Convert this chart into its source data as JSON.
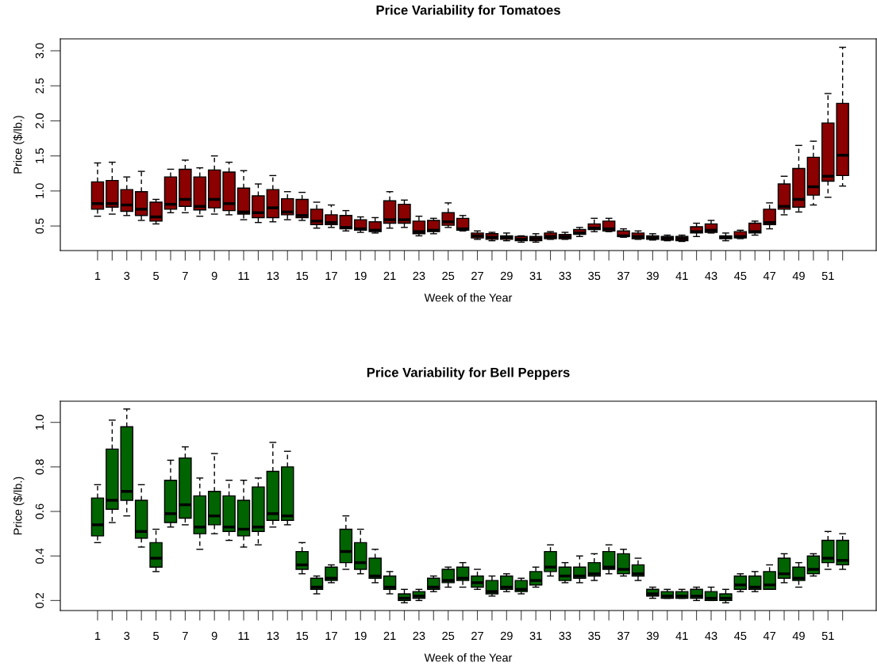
{
  "chart_data": [
    {
      "type": "box",
      "title": "Price Variability for Tomatoes",
      "xlabel": "Week of the Year",
      "ylabel": "Price ($/lb.)",
      "color": "#8b0000",
      "categories": [
        "1",
        null,
        "3",
        null,
        "5",
        null,
        "7",
        null,
        "9",
        null,
        "11",
        null,
        "13",
        null,
        "15",
        null,
        "17",
        null,
        "19",
        null,
        "21",
        null,
        "23",
        null,
        "25",
        null,
        "27",
        null,
        "29",
        null,
        "31",
        null,
        "33",
        null,
        "35",
        null,
        "37",
        null,
        "39",
        null,
        "41",
        null,
        "43",
        null,
        "45",
        null,
        "47",
        null,
        "49",
        null,
        "51",
        null
      ],
      "ylim": [
        0.15,
        3.17
      ],
      "yticks": [
        {
          "value": 0.5,
          "label": "0.5"
        },
        {
          "value": 1.0,
          "label": "1.0"
        },
        {
          "value": 1.5,
          "label": "1.5"
        },
        {
          "value": 2.0,
          "label": "2.0"
        },
        {
          "value": 2.5,
          "label": "2.5"
        },
        {
          "value": 3.0,
          "label": "3.0"
        }
      ],
      "boxes": [
        {
          "low": 0.64,
          "q1": 0.74,
          "median": 0.82,
          "q3": 1.13,
          "high": 1.4
        },
        {
          "low": 0.67,
          "q1": 0.77,
          "median": 0.82,
          "q3": 1.15,
          "high": 1.41
        },
        {
          "low": 0.65,
          "q1": 0.71,
          "median": 0.8,
          "q3": 1.02,
          "high": 1.2
        },
        {
          "low": 0.58,
          "q1": 0.65,
          "median": 0.74,
          "q3": 0.99,
          "high": 1.28
        },
        {
          "low": 0.53,
          "q1": 0.57,
          "median": 0.63,
          "q3": 0.84,
          "high": 0.88
        },
        {
          "low": 0.69,
          "q1": 0.74,
          "median": 0.81,
          "q3": 1.2,
          "high": 1.31
        },
        {
          "low": 0.69,
          "q1": 0.78,
          "median": 0.88,
          "q3": 1.31,
          "high": 1.44
        },
        {
          "low": 0.64,
          "q1": 0.73,
          "median": 0.78,
          "q3": 1.2,
          "high": 1.33
        },
        {
          "low": 0.67,
          "q1": 0.76,
          "median": 0.88,
          "q3": 1.3,
          "high": 1.5
        },
        {
          "low": 0.66,
          "q1": 0.72,
          "median": 0.82,
          "q3": 1.27,
          "high": 1.41
        },
        {
          "low": 0.59,
          "q1": 0.67,
          "median": 0.7,
          "q3": 1.04,
          "high": 1.29
        },
        {
          "low": 0.55,
          "q1": 0.62,
          "median": 0.69,
          "q3": 0.93,
          "high": 1.1
        },
        {
          "low": 0.56,
          "q1": 0.62,
          "median": 0.76,
          "q3": 1.02,
          "high": 1.22
        },
        {
          "low": 0.59,
          "q1": 0.66,
          "median": 0.7,
          "q3": 0.89,
          "high": 0.99
        },
        {
          "low": 0.58,
          "q1": 0.62,
          "median": 0.65,
          "q3": 0.88,
          "high": 0.98
        },
        {
          "low": 0.47,
          "q1": 0.52,
          "median": 0.57,
          "q3": 0.74,
          "high": 0.84
        },
        {
          "low": 0.48,
          "q1": 0.52,
          "median": 0.55,
          "q3": 0.66,
          "high": 0.8
        },
        {
          "low": 0.43,
          "q1": 0.46,
          "median": 0.48,
          "q3": 0.65,
          "high": 0.72
        },
        {
          "low": 0.41,
          "q1": 0.44,
          "median": 0.46,
          "q3": 0.59,
          "high": 0.63
        },
        {
          "low": 0.4,
          "q1": 0.42,
          "median": 0.44,
          "q3": 0.56,
          "high": 0.62
        },
        {
          "low": 0.47,
          "q1": 0.54,
          "median": 0.59,
          "q3": 0.86,
          "high": 0.99
        },
        {
          "low": 0.48,
          "q1": 0.54,
          "median": 0.59,
          "q3": 0.81,
          "high": 0.87
        },
        {
          "low": 0.36,
          "q1": 0.39,
          "median": 0.42,
          "q3": 0.57,
          "high": 0.64
        },
        {
          "low": 0.39,
          "q1": 0.42,
          "median": 0.44,
          "q3": 0.58,
          "high": 0.61
        },
        {
          "low": 0.48,
          "q1": 0.51,
          "median": 0.56,
          "q3": 0.69,
          "high": 0.83
        },
        {
          "low": 0.43,
          "q1": 0.44,
          "median": 0.46,
          "q3": 0.61,
          "high": 0.65
        },
        {
          "low": 0.31,
          "q1": 0.33,
          "median": 0.36,
          "q3": 0.4,
          "high": 0.43
        },
        {
          "low": 0.29,
          "q1": 0.31,
          "median": 0.34,
          "q3": 0.39,
          "high": 0.41
        },
        {
          "low": 0.29,
          "q1": 0.31,
          "median": 0.34,
          "q3": 0.36,
          "high": 0.4
        },
        {
          "low": 0.27,
          "q1": 0.29,
          "median": 0.31,
          "q3": 0.35,
          "high": 0.36
        },
        {
          "low": 0.27,
          "q1": 0.29,
          "median": 0.32,
          "q3": 0.35,
          "high": 0.39
        },
        {
          "low": 0.31,
          "q1": 0.32,
          "median": 0.35,
          "q3": 0.4,
          "high": 0.42
        },
        {
          "low": 0.31,
          "q1": 0.32,
          "median": 0.35,
          "q3": 0.38,
          "high": 0.41
        },
        {
          "low": 0.35,
          "q1": 0.38,
          "median": 0.4,
          "q3": 0.45,
          "high": 0.48
        },
        {
          "low": 0.42,
          "q1": 0.45,
          "median": 0.47,
          "q3": 0.53,
          "high": 0.61
        },
        {
          "low": 0.42,
          "q1": 0.43,
          "median": 0.46,
          "q3": 0.57,
          "high": 0.61
        },
        {
          "low": 0.34,
          "q1": 0.35,
          "median": 0.36,
          "q3": 0.43,
          "high": 0.46
        },
        {
          "low": 0.31,
          "q1": 0.32,
          "median": 0.35,
          "q3": 0.4,
          "high": 0.43
        },
        {
          "low": 0.3,
          "q1": 0.31,
          "median": 0.33,
          "q3": 0.36,
          "high": 0.39
        },
        {
          "low": 0.29,
          "q1": 0.3,
          "median": 0.33,
          "q3": 0.35,
          "high": 0.37
        },
        {
          "low": 0.28,
          "q1": 0.29,
          "median": 0.32,
          "q3": 0.35,
          "high": 0.37
        },
        {
          "low": 0.35,
          "q1": 0.4,
          "median": 0.42,
          "q3": 0.49,
          "high": 0.54
        },
        {
          "low": 0.4,
          "q1": 0.41,
          "median": 0.44,
          "q3": 0.53,
          "high": 0.58
        },
        {
          "low": 0.29,
          "q1": 0.32,
          "median": 0.34,
          "q3": 0.36,
          "high": 0.4
        },
        {
          "low": 0.32,
          "q1": 0.33,
          "median": 0.35,
          "q3": 0.42,
          "high": 0.44
        },
        {
          "low": 0.37,
          "q1": 0.4,
          "median": 0.42,
          "q3": 0.54,
          "high": 0.57
        },
        {
          "low": 0.46,
          "q1": 0.52,
          "median": 0.55,
          "q3": 0.74,
          "high": 0.83
        },
        {
          "low": 0.66,
          "q1": 0.74,
          "median": 0.78,
          "q3": 1.1,
          "high": 1.21
        },
        {
          "low": 0.7,
          "q1": 0.77,
          "median": 0.88,
          "q3": 1.32,
          "high": 1.65
        },
        {
          "low": 0.8,
          "q1": 0.94,
          "median": 1.06,
          "q3": 1.48,
          "high": 1.71
        },
        {
          "low": 0.91,
          "q1": 1.14,
          "median": 1.21,
          "q3": 1.97,
          "high": 2.39
        },
        {
          "low": 1.07,
          "q1": 1.22,
          "median": 1.51,
          "q3": 2.25,
          "high": 3.05
        }
      ]
    },
    {
      "type": "box",
      "title": "Price Variability for Bell Peppers",
      "xlabel": "Week of the Year",
      "ylabel": "Price ($/lb.)",
      "color": "#006400",
      "categories": [
        "1",
        null,
        "3",
        null,
        "5",
        null,
        "7",
        null,
        "9",
        null,
        "11",
        null,
        "13",
        null,
        "15",
        null,
        "17",
        null,
        "19",
        null,
        "21",
        null,
        "23",
        null,
        "25",
        null,
        "27",
        null,
        "29",
        null,
        "31",
        null,
        "33",
        null,
        "35",
        null,
        "37",
        null,
        "39",
        null,
        "41",
        null,
        "43",
        null,
        "45",
        null,
        "47",
        null,
        "49",
        null,
        "51",
        null
      ],
      "ylim": [
        0.155,
        1.095
      ],
      "yticks": [
        {
          "value": 0.2,
          "label": "0.2"
        },
        {
          "value": 0.4,
          "label": "0.4"
        },
        {
          "value": 0.6,
          "label": "0.6"
        },
        {
          "value": 0.8,
          "label": "0.8"
        },
        {
          "value": 1.0,
          "label": "1.0"
        }
      ],
      "boxes": [
        {
          "low": 0.46,
          "q1": 0.49,
          "median": 0.54,
          "q3": 0.66,
          "high": 0.72
        },
        {
          "low": 0.55,
          "q1": 0.61,
          "median": 0.65,
          "q3": 0.88,
          "high": 1.01
        },
        {
          "low": 0.58,
          "q1": 0.65,
          "median": 0.69,
          "q3": 0.98,
          "high": 1.06
        },
        {
          "low": 0.44,
          "q1": 0.48,
          "median": 0.51,
          "q3": 0.65,
          "high": 0.72
        },
        {
          "low": 0.33,
          "q1": 0.35,
          "median": 0.39,
          "q3": 0.46,
          "high": 0.52
        },
        {
          "low": 0.53,
          "q1": 0.55,
          "median": 0.59,
          "q3": 0.74,
          "high": 0.83
        },
        {
          "low": 0.54,
          "q1": 0.57,
          "median": 0.63,
          "q3": 0.84,
          "high": 0.89
        },
        {
          "low": 0.43,
          "q1": 0.5,
          "median": 0.53,
          "q3": 0.67,
          "high": 0.75
        },
        {
          "low": 0.5,
          "q1": 0.54,
          "median": 0.58,
          "q3": 0.69,
          "high": 0.86
        },
        {
          "low": 0.47,
          "q1": 0.51,
          "median": 0.53,
          "q3": 0.67,
          "high": 0.74
        },
        {
          "low": 0.44,
          "q1": 0.49,
          "median": 0.52,
          "q3": 0.65,
          "high": 0.74
        },
        {
          "low": 0.45,
          "q1": 0.51,
          "median": 0.53,
          "q3": 0.71,
          "high": 0.75
        },
        {
          "low": 0.53,
          "q1": 0.56,
          "median": 0.59,
          "q3": 0.78,
          "high": 0.91
        },
        {
          "low": 0.54,
          "q1": 0.56,
          "median": 0.58,
          "q3": 0.8,
          "high": 0.87
        },
        {
          "low": 0.32,
          "q1": 0.34,
          "median": 0.36,
          "q3": 0.42,
          "high": 0.46
        },
        {
          "low": 0.23,
          "q1": 0.25,
          "median": 0.26,
          "q3": 0.3,
          "high": 0.31
        },
        {
          "low": 0.28,
          "q1": 0.29,
          "median": 0.3,
          "q3": 0.35,
          "high": 0.36
        },
        {
          "low": 0.34,
          "q1": 0.37,
          "median": 0.42,
          "q3": 0.52,
          "high": 0.58
        },
        {
          "low": 0.32,
          "q1": 0.34,
          "median": 0.37,
          "q3": 0.46,
          "high": 0.52
        },
        {
          "low": 0.28,
          "q1": 0.3,
          "median": 0.31,
          "q3": 0.39,
          "high": 0.43
        },
        {
          "low": 0.23,
          "q1": 0.25,
          "median": 0.26,
          "q3": 0.31,
          "high": 0.33
        },
        {
          "low": 0.19,
          "q1": 0.2,
          "median": 0.21,
          "q3": 0.23,
          "high": 0.25
        },
        {
          "low": 0.2,
          "q1": 0.21,
          "median": 0.22,
          "q3": 0.24,
          "high": 0.25
        },
        {
          "low": 0.24,
          "q1": 0.25,
          "median": 0.26,
          "q3": 0.3,
          "high": 0.31
        },
        {
          "low": 0.26,
          "q1": 0.28,
          "median": 0.29,
          "q3": 0.34,
          "high": 0.35
        },
        {
          "low": 0.26,
          "q1": 0.29,
          "median": 0.3,
          "q3": 0.35,
          "high": 0.37
        },
        {
          "low": 0.25,
          "q1": 0.26,
          "median": 0.28,
          "q3": 0.31,
          "high": 0.34
        },
        {
          "low": 0.22,
          "q1": 0.23,
          "median": 0.24,
          "q3": 0.29,
          "high": 0.31
        },
        {
          "low": 0.24,
          "q1": 0.25,
          "median": 0.26,
          "q3": 0.31,
          "high": 0.32
        },
        {
          "low": 0.23,
          "q1": 0.24,
          "median": 0.25,
          "q3": 0.29,
          "high": 0.3
        },
        {
          "low": 0.26,
          "q1": 0.27,
          "median": 0.29,
          "q3": 0.33,
          "high": 0.35
        },
        {
          "low": 0.31,
          "q1": 0.33,
          "median": 0.35,
          "q3": 0.42,
          "high": 0.45
        },
        {
          "low": 0.28,
          "q1": 0.29,
          "median": 0.31,
          "q3": 0.35,
          "high": 0.37
        },
        {
          "low": 0.28,
          "q1": 0.3,
          "median": 0.31,
          "q3": 0.35,
          "high": 0.4
        },
        {
          "low": 0.29,
          "q1": 0.31,
          "median": 0.32,
          "q3": 0.37,
          "high": 0.41
        },
        {
          "low": 0.32,
          "q1": 0.34,
          "median": 0.35,
          "q3": 0.42,
          "high": 0.45
        },
        {
          "low": 0.31,
          "q1": 0.32,
          "median": 0.34,
          "q3": 0.41,
          "high": 0.43
        },
        {
          "low": 0.29,
          "q1": 0.31,
          "median": 0.32,
          "q3": 0.36,
          "high": 0.39
        },
        {
          "low": 0.21,
          "q1": 0.22,
          "median": 0.23,
          "q3": 0.25,
          "high": 0.26
        },
        {
          "low": 0.21,
          "q1": 0.21,
          "median": 0.22,
          "q3": 0.24,
          "high": 0.25
        },
        {
          "low": 0.21,
          "q1": 0.21,
          "median": 0.22,
          "q3": 0.24,
          "high": 0.25
        },
        {
          "low": 0.2,
          "q1": 0.21,
          "median": 0.22,
          "q3": 0.25,
          "high": 0.26
        },
        {
          "low": 0.2,
          "q1": 0.2,
          "median": 0.21,
          "q3": 0.24,
          "high": 0.26
        },
        {
          "low": 0.19,
          "q1": 0.2,
          "median": 0.21,
          "q3": 0.23,
          "high": 0.25
        },
        {
          "low": 0.24,
          "q1": 0.25,
          "median": 0.27,
          "q3": 0.31,
          "high": 0.32
        },
        {
          "low": 0.24,
          "q1": 0.25,
          "median": 0.26,
          "q3": 0.31,
          "high": 0.33
        },
        {
          "low": 0.25,
          "q1": 0.25,
          "median": 0.27,
          "q3": 0.33,
          "high": 0.36
        },
        {
          "low": 0.28,
          "q1": 0.3,
          "median": 0.32,
          "q3": 0.39,
          "high": 0.41
        },
        {
          "low": 0.26,
          "q1": 0.29,
          "median": 0.3,
          "q3": 0.35,
          "high": 0.37
        },
        {
          "low": 0.31,
          "q1": 0.32,
          "median": 0.34,
          "q3": 0.4,
          "high": 0.41
        },
        {
          "low": 0.34,
          "q1": 0.37,
          "median": 0.39,
          "q3": 0.47,
          "high": 0.51
        },
        {
          "low": 0.34,
          "q1": 0.36,
          "median": 0.38,
          "q3": 0.47,
          "high": 0.5
        }
      ]
    }
  ]
}
